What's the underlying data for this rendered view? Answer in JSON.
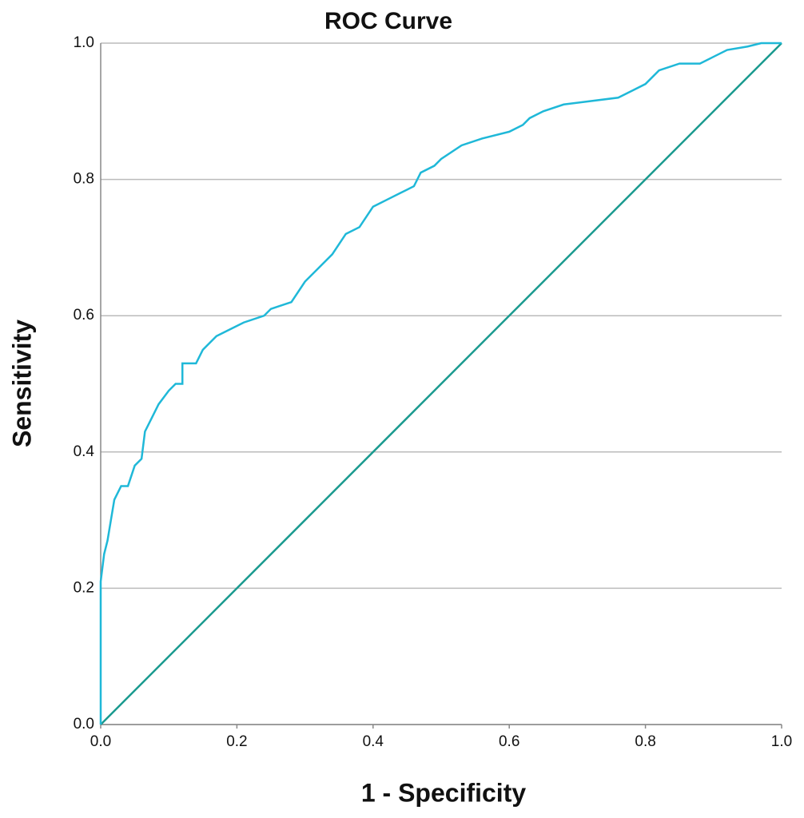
{
  "chart_data": {
    "type": "line",
    "title": "ROC Curve",
    "xlabel": "1 - Specificity",
    "ylabel": "Sensitivity",
    "xlim": [
      0,
      1
    ],
    "ylim": [
      0,
      1
    ],
    "xticks": [
      {
        "value": 0,
        "label": "0.0"
      },
      0.2,
      0.4,
      0.6,
      0.8,
      {
        "value": 1,
        "label": "1.0"
      }
    ],
    "yticks": [
      {
        "value": 0,
        "label": "0.0"
      },
      0.2,
      0.4,
      0.6,
      0.8,
      {
        "value": 1,
        "label": "1.0"
      }
    ],
    "grid": true,
    "series": [
      {
        "color": "#1fb8d8",
        "x": [
          0,
          0,
          0.005,
          0.01,
          0.015,
          0.02,
          0.03,
          0.04,
          0.05,
          0.06,
          0.065,
          0.075,
          0.085,
          0.1,
          0.11,
          0.12,
          0.12,
          0.14,
          0.15,
          0.17,
          0.19,
          0.21,
          0.24,
          0.25,
          0.28,
          0.3,
          0.32,
          0.34,
          0.36,
          0.38,
          0.4,
          0.42,
          0.44,
          0.46,
          0.47,
          0.49,
          0.5,
          0.53,
          0.56,
          0.6,
          0.62,
          0.63,
          0.65,
          0.68,
          0.72,
          0.76,
          0.78,
          0.8,
          0.82,
          0.85,
          0.88,
          0.9,
          0.92,
          0.95,
          0.97,
          1
        ],
        "values": [
          0,
          0.21,
          0.25,
          0.27,
          0.3,
          0.33,
          0.35,
          0.35,
          0.38,
          0.39,
          0.43,
          0.45,
          0.47,
          0.49,
          0.5,
          0.5,
          0.53,
          0.53,
          0.55,
          0.57,
          0.58,
          0.59,
          0.6,
          0.61,
          0.62,
          0.65,
          0.67,
          0.69,
          0.72,
          0.73,
          0.76,
          0.77,
          0.78,
          0.79,
          0.81,
          0.82,
          0.83,
          0.85,
          0.86,
          0.87,
          0.88,
          0.89,
          0.9,
          0.91,
          0.915,
          0.92,
          0.93,
          0.94,
          0.96,
          0.97,
          0.97,
          0.98,
          0.99,
          0.995,
          1,
          1
        ]
      },
      {
        "color": "#1a9a8f",
        "x": [
          0,
          1
        ],
        "values": [
          0,
          1
        ]
      }
    ]
  }
}
